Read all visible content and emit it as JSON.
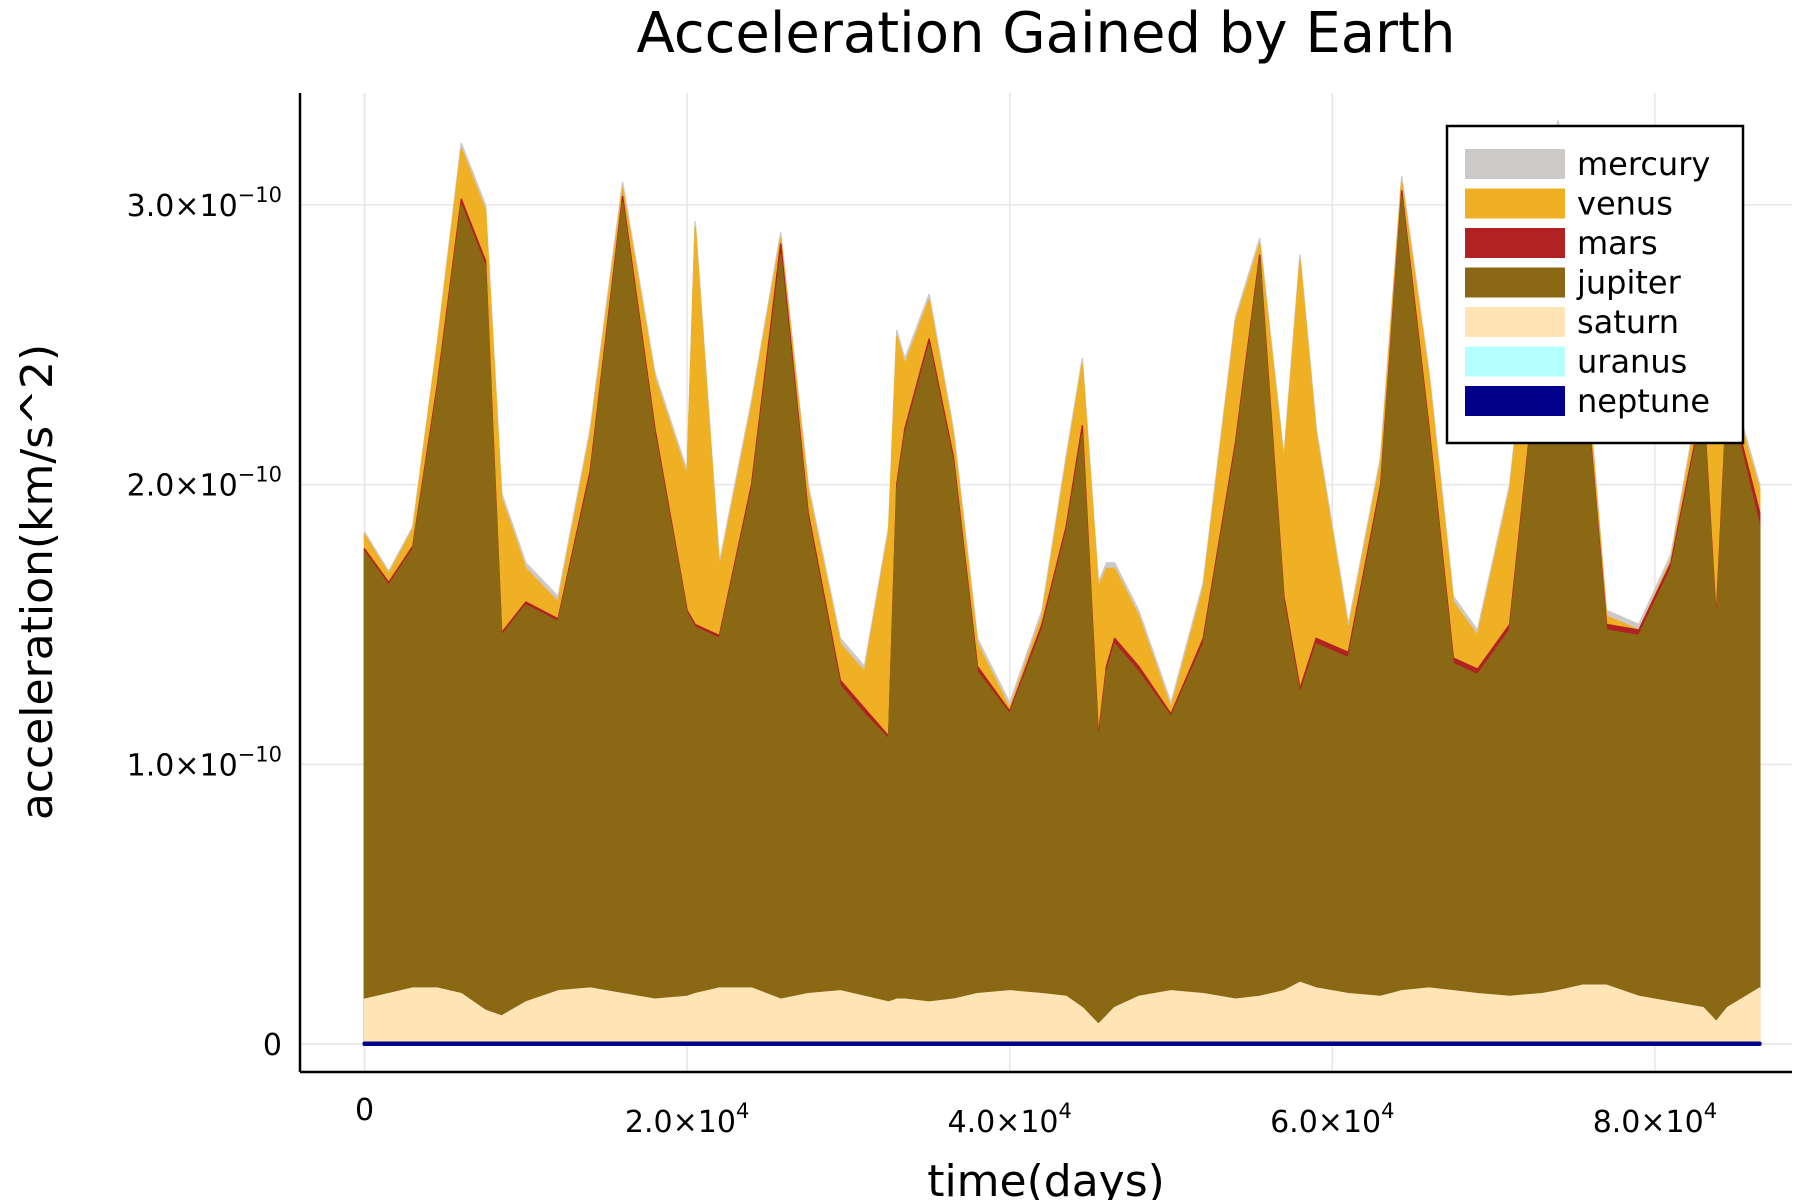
{
  "chart_data": {
    "type": "area",
    "title": "Acceleration Gained by Earth",
    "xlabel": "time(days)",
    "ylabel": "acceleration(km/s^2)",
    "xlim": [
      -4000,
      88500
    ],
    "ylim": [
      -1e-11,
      3.4e-10
    ],
    "grid": true,
    "legend_position": "top-right",
    "x_ticks": [
      {
        "value": 0,
        "mantissa": "0",
        "exp": ""
      },
      {
        "value": 20000,
        "mantissa": "2.0×10",
        "exp": "4"
      },
      {
        "value": 40000,
        "mantissa": "4.0×10",
        "exp": "4"
      },
      {
        "value": 60000,
        "mantissa": "6.0×10",
        "exp": "4"
      },
      {
        "value": 80000,
        "mantissa": "8.0×10",
        "exp": "4"
      }
    ],
    "y_ticks": [
      {
        "value": 0,
        "mantissa": "0",
        "exp": ""
      },
      {
        "value": 1e-10,
        "mantissa": "1.0×10",
        "exp": "−10"
      },
      {
        "value": 2e-10,
        "mantissa": "2.0×10",
        "exp": "−10"
      },
      {
        "value": 3e-10,
        "mantissa": "3.0×10",
        "exp": "−10"
      }
    ],
    "x": [
      0,
      1500,
      3000,
      4500,
      6000,
      7500,
      8500,
      10000,
      12000,
      14000,
      16000,
      18000,
      20000,
      20500,
      22000,
      24000,
      25800,
      27500,
      29500,
      31000,
      32500,
      33000,
      33500,
      35000,
      36500,
      38000,
      40000,
      42000,
      43500,
      44500,
      45500,
      46000,
      46500,
      48000,
      50000,
      52000,
      54000,
      55500,
      57000,
      58000,
      59000,
      61000,
      63000,
      64300,
      66000,
      67500,
      69000,
      71000,
      73000,
      74000,
      75500,
      77000,
      79000,
      81000,
      83000,
      83800,
      84500,
      86500
    ],
    "series": [
      {
        "name": "mercury",
        "color": "#cdc9c9",
        "values": [
          1.83e-10,
          1.69e-10,
          1.85e-10,
          2.5e-10,
          3.22e-10,
          3e-10,
          1.97e-10,
          1.72e-10,
          1.6e-10,
          2.2e-10,
          3.08e-10,
          2.4e-10,
          2.05e-10,
          2.94e-10,
          1.72e-10,
          2.3e-10,
          2.9e-10,
          2e-10,
          1.45e-10,
          1.35e-10,
          1.85e-10,
          2.55e-10,
          2.45e-10,
          2.68e-10,
          2.2e-10,
          1.45e-10,
          1.22e-10,
          1.55e-10,
          2.1e-10,
          2.45e-10,
          1.65e-10,
          1.72e-10,
          1.72e-10,
          1.55e-10,
          1.22e-10,
          1.65e-10,
          2.6e-10,
          2.88e-10,
          2.1e-10,
          2.82e-10,
          2.2e-10,
          1.5e-10,
          2.1e-10,
          3.1e-10,
          2.4e-10,
          1.6e-10,
          1.48e-10,
          2e-10,
          3.05e-10,
          3.3e-10,
          2.6e-10,
          1.55e-10,
          1.5e-10,
          1.75e-10,
          2.4e-10,
          2.15e-10,
          2.4e-10,
          2e-10
        ]
      },
      {
        "name": "venus",
        "color": "#efb024",
        "values": [
          1.82e-10,
          1.68e-10,
          1.84e-10,
          2.49e-10,
          3.2e-10,
          2.98e-10,
          1.95e-10,
          1.7e-10,
          1.58e-10,
          2.18e-10,
          3.06e-10,
          2.38e-10,
          2.03e-10,
          2.92e-10,
          1.7e-10,
          2.28e-10,
          2.88e-10,
          1.98e-10,
          1.43e-10,
          1.33e-10,
          1.83e-10,
          2.53e-10,
          2.43e-10,
          2.66e-10,
          2.18e-10,
          1.43e-10,
          1.2e-10,
          1.53e-10,
          2.08e-10,
          2.43e-10,
          1.63e-10,
          1.7e-10,
          1.7e-10,
          1.53e-10,
          1.2e-10,
          1.63e-10,
          2.58e-10,
          2.86e-10,
          2.08e-10,
          2.8e-10,
          2.18e-10,
          1.48e-10,
          2.08e-10,
          3.08e-10,
          2.38e-10,
          1.58e-10,
          1.46e-10,
          1.98e-10,
          3.03e-10,
          3.28e-10,
          2.58e-10,
          1.53e-10,
          1.48e-10,
          1.73e-10,
          2.38e-10,
          2.13e-10,
          2.38e-10,
          1.98e-10
        ]
      },
      {
        "name": "mars",
        "color": "#b22222",
        "values": [
          1.77e-10,
          1.65e-10,
          1.78e-10,
          2.35e-10,
          3.02e-10,
          2.8e-10,
          1.47e-10,
          1.58e-10,
          1.52e-10,
          2.05e-10,
          3.03e-10,
          2.2e-10,
          1.55e-10,
          1.5e-10,
          1.46e-10,
          2e-10,
          2.86e-10,
          1.9e-10,
          1.3e-10,
          1.2e-10,
          1.1e-10,
          2e-10,
          2.2e-10,
          2.52e-10,
          2.1e-10,
          1.35e-10,
          1.19e-10,
          1.5e-10,
          1.85e-10,
          2.21e-10,
          1.1e-10,
          1.35e-10,
          1.45e-10,
          1.35e-10,
          1.18e-10,
          1.45e-10,
          2.15e-10,
          2.82e-10,
          1.6e-10,
          1.27e-10,
          1.45e-10,
          1.4e-10,
          2e-10,
          3.05e-10,
          2.2e-10,
          1.38e-10,
          1.34e-10,
          1.5e-10,
          2.6e-10,
          3.2e-10,
          2.5e-10,
          1.5e-10,
          1.48e-10,
          1.72e-10,
          2.3e-10,
          1.52e-10,
          2.35e-10,
          1.9e-10
        ]
      },
      {
        "name": "jupiter",
        "color": "#8b6914",
        "values": [
          1.76e-10,
          1.64e-10,
          1.77e-10,
          2.33e-10,
          3e-10,
          2.78e-10,
          1.46e-10,
          1.57e-10,
          1.51e-10,
          2.03e-10,
          3.01e-10,
          2.18e-10,
          1.54e-10,
          1.49e-10,
          1.45e-10,
          1.98e-10,
          2.82e-10,
          1.88e-10,
          1.28e-10,
          1.18e-10,
          1.09e-10,
          1.98e-10,
          2.18e-10,
          2.5e-10,
          2.08e-10,
          1.33e-10,
          1.18e-10,
          1.48e-10,
          1.83e-10,
          2.18e-10,
          1.08e-10,
          1.33e-10,
          1.43e-10,
          1.33e-10,
          1.17e-10,
          1.43e-10,
          2.13e-10,
          2.8e-10,
          1.58e-10,
          1.25e-10,
          1.43e-10,
          1.38e-10,
          1.98e-10,
          3.03e-10,
          2.18e-10,
          1.36e-10,
          1.32e-10,
          1.48e-10,
          2.58e-10,
          3.18e-10,
          2.48e-10,
          1.48e-10,
          1.46e-10,
          1.7e-10,
          2.28e-10,
          1.5e-10,
          2.33e-10,
          1.85e-10
        ]
      },
      {
        "name": "saturn",
        "color": "#ffe4b5",
        "values": [
          1.6e-11,
          1.8e-11,
          2e-11,
          2e-11,
          1.8e-11,
          1.2e-11,
          1e-11,
          1.5e-11,
          1.9e-11,
          2e-11,
          1.8e-11,
          1.6e-11,
          1.7e-11,
          1.8e-11,
          2e-11,
          2e-11,
          1.6e-11,
          1.8e-11,
          1.9e-11,
          1.7e-11,
          1.5e-11,
          1.6e-11,
          1.6e-11,
          1.5e-11,
          1.6e-11,
          1.8e-11,
          1.9e-11,
          1.8e-11,
          1.7e-11,
          1.3e-11,
          7e-12,
          1e-11,
          1.3e-11,
          1.7e-11,
          1.9e-11,
          1.8e-11,
          1.6e-11,
          1.7e-11,
          1.9e-11,
          2.2e-11,
          2e-11,
          1.8e-11,
          1.7e-11,
          1.9e-11,
          2e-11,
          1.9e-11,
          1.8e-11,
          1.7e-11,
          1.8e-11,
          1.9e-11,
          2.1e-11,
          2.1e-11,
          1.7e-11,
          1.5e-11,
          1.3e-11,
          8e-12,
          1.3e-11,
          2e-11
        ]
      },
      {
        "name": "uranus",
        "color": "#b5ffff",
        "values": [
          4e-13,
          4e-13,
          4e-13,
          4e-13,
          4e-13,
          4e-13,
          4e-13,
          4e-13,
          4e-13,
          4e-13,
          4e-13,
          4e-13,
          4e-13,
          4e-13,
          4e-13,
          4e-13,
          4e-13,
          4e-13,
          4e-13,
          4e-13,
          4e-13,
          4e-13,
          4e-13,
          4e-13,
          4e-13,
          4e-13,
          4e-13,
          4e-13,
          4e-13,
          4e-13,
          4e-13,
          4e-13,
          4e-13,
          4e-13,
          4e-13,
          4e-13,
          4e-13,
          4e-13,
          4e-13,
          4e-13,
          4e-13,
          4e-13,
          4e-13,
          4e-13,
          4e-13,
          4e-13,
          4e-13,
          4e-13,
          4e-13,
          4e-13,
          4e-13,
          4e-13,
          4e-13,
          4e-13,
          4e-13,
          4e-13,
          4e-13,
          4e-13
        ]
      },
      {
        "name": "neptune",
        "color": "#00008b",
        "values": [
          2e-13,
          2e-13,
          2e-13,
          2e-13,
          2e-13,
          2e-13,
          2e-13,
          2e-13,
          2e-13,
          2e-13,
          2e-13,
          2e-13,
          2e-13,
          2e-13,
          2e-13,
          2e-13,
          2e-13,
          2e-13,
          2e-13,
          2e-13,
          2e-13,
          2e-13,
          2e-13,
          2e-13,
          2e-13,
          2e-13,
          2e-13,
          2e-13,
          2e-13,
          2e-13,
          2e-13,
          2e-13,
          2e-13,
          2e-13,
          2e-13,
          2e-13,
          2e-13,
          2e-13,
          2e-13,
          2e-13,
          2e-13,
          2e-13,
          2e-13,
          2e-13,
          2e-13,
          2e-13,
          2e-13,
          2e-13,
          2e-13,
          2e-13,
          2e-13,
          2e-13,
          2e-13,
          2e-13,
          2e-13,
          2e-13,
          2e-13,
          2e-13
        ]
      }
    ]
  }
}
